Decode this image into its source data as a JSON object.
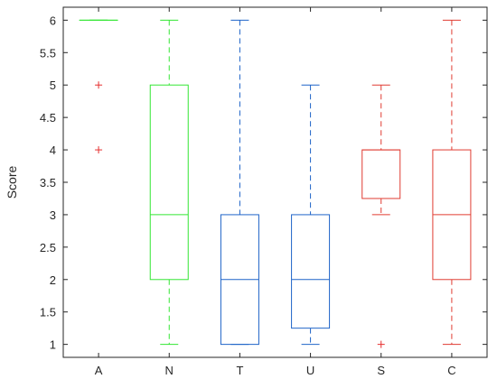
{
  "chart_data": {
    "type": "box",
    "title": "",
    "xlabel": "",
    "ylabel": "Score",
    "ylim": [
      0.8,
      6.2
    ],
    "yticks": [
      "1",
      "1.5",
      "2",
      "2.5",
      "3",
      "3.5",
      "4",
      "4.5",
      "5",
      "5.5",
      "6"
    ],
    "grid": false,
    "legend": "none",
    "categories": [
      "A",
      "N",
      "T",
      "U",
      "S",
      "C"
    ],
    "series": [
      {
        "category": "A",
        "color": "#33e633",
        "whisker_low": 6,
        "q1": 6,
        "median": 6,
        "q3": 6,
        "whisker_high": 6,
        "outliers": [
          5,
          4
        ],
        "outlier_color": "#e62e2e"
      },
      {
        "category": "N",
        "color": "#33e633",
        "whisker_low": 1,
        "q1": 2,
        "median": 3,
        "q3": 5,
        "whisker_high": 6,
        "outliers": [],
        "outlier_color": "#e62e2e"
      },
      {
        "category": "T",
        "color": "#1f64c8",
        "whisker_low": 1,
        "q1": 1,
        "median": 2,
        "q3": 3,
        "whisker_high": 6,
        "outliers": [],
        "outlier_color": "#e62e2e"
      },
      {
        "category": "U",
        "color": "#1f64c8",
        "whisker_low": 1,
        "q1": 1.25,
        "median": 2,
        "q3": 3,
        "whisker_high": 5,
        "outliers": [],
        "outlier_color": "#e62e2e"
      },
      {
        "category": "S",
        "color": "#e03c32",
        "whisker_low": 3,
        "q1": 3.25,
        "median": 4,
        "q3": 4,
        "whisker_high": 5,
        "outliers": [
          1
        ],
        "outlier_color": "#e62e2e"
      },
      {
        "category": "C",
        "color": "#e03c32",
        "whisker_low": 1,
        "q1": 2,
        "median": 3,
        "q3": 4,
        "whisker_high": 6,
        "outliers": [],
        "outlier_color": "#e62e2e"
      }
    ]
  }
}
